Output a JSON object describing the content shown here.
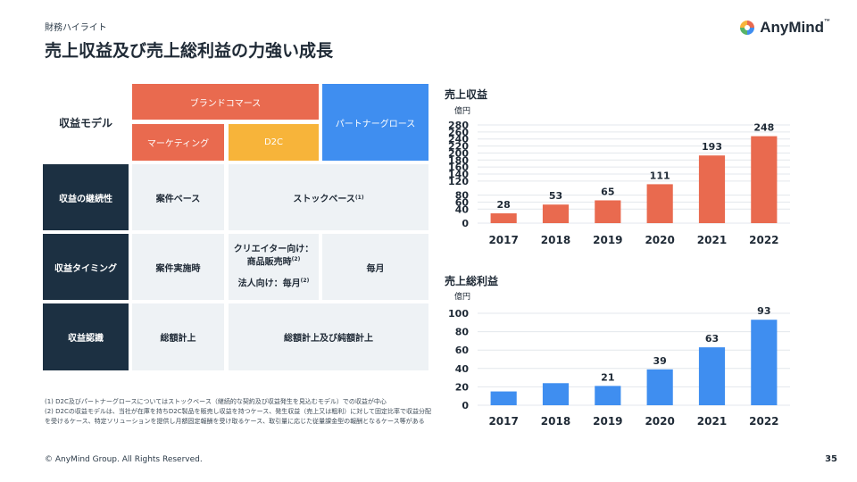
{
  "header": {
    "subtitle": "財務ハイライト",
    "title": "売上収益及び売上総利益の力強い成長"
  },
  "logo": {
    "text": "AnyMind",
    "tm": "™"
  },
  "model": {
    "row_header": "収益モデル",
    "brand_commerce": "ブランドコマース",
    "partner_growth": "パートナーグロース",
    "marketing": "マーケティング",
    "d2c": "D2C",
    "rows": [
      {
        "label": "収益の継続性",
        "col1": "案件ベース",
        "col2": "ストックベース",
        "col2_sup": "(1)"
      },
      {
        "label": "収益タイミング",
        "col1": "案件実施時",
        "creator_line1": "クリエイター向け：",
        "creator_line2": "商品販売時",
        "creator_sup": "(2)",
        "corporate": "法人向け：毎月",
        "corporate_sup": "(2)",
        "col3": "毎月"
      },
      {
        "label": "収益認識",
        "col1": "総額計上",
        "col2": "総額計上及び純額計上"
      }
    ]
  },
  "footnotes": [
    "(1) D2C及びパートナーグロースについてはストックベース（継続的な契約及び収益発生を見込むモデル）での収益が中心",
    "(2) D2Cの収益モデルは、当社が在庫を持ちD2C製品を販売し収益を持つケース、発生収益（売上又は粗利）に対して固定比率で収益分配を受けるケース、特定ソリューションを提供し月額固定報酬を受け取るケース、取引量に応じた従量課金型の報酬となるケース等がある"
  ],
  "footer": {
    "copyright": "© AnyMind Group. All Rights Reserved.",
    "page": "35"
  },
  "colors": {
    "orange": "#e96a4f",
    "blue": "#3f8ef0",
    "navy": "#1c3042"
  },
  "chart_data": [
    {
      "type": "bar",
      "title": "売上収益",
      "unit": "億円",
      "categories": [
        "2017",
        "2018",
        "2019",
        "2020",
        "2021",
        "2022"
      ],
      "values": [
        28,
        53,
        65,
        111,
        193,
        248
      ],
      "labels": [
        "28",
        "53",
        "65",
        "111",
        "193",
        "248"
      ],
      "ylim": [
        0,
        280
      ],
      "yticks": [
        0,
        40,
        60,
        80,
        120,
        140,
        160,
        180,
        200,
        220,
        240,
        260,
        280
      ],
      "ytick_labels": [
        "0",
        "40",
        "60",
        "80",
        "120",
        "140",
        "160",
        "180",
        "200",
        "220",
        "240",
        "260",
        "280"
      ],
      "color": "#e96a4f",
      "grid": true
    },
    {
      "type": "bar",
      "title": "売上総利益",
      "unit": "億円",
      "categories": [
        "2017",
        "2018",
        "2019",
        "2020",
        "2021",
        "2022"
      ],
      "values": [
        15,
        24,
        21,
        39,
        63,
        93
      ],
      "labels": [
        "",
        "",
        "21",
        "39",
        "63",
        "93"
      ],
      "ylim": [
        0,
        100
      ],
      "yticks": [
        0,
        20,
        40,
        60,
        80,
        100
      ],
      "ytick_labels": [
        "0",
        "20",
        "40",
        "60",
        "80",
        "100"
      ],
      "color": "#3f8ef0",
      "grid": true
    }
  ]
}
